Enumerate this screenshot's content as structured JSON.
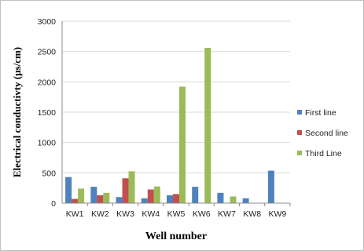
{
  "chart_data": {
    "type": "bar",
    "title": "",
    "xlabel": "Well number",
    "ylabel": "Electrical conductivty (μs/cm)",
    "categories": [
      "KW1",
      "KW2",
      "KW3",
      "KW4",
      "KW5",
      "KW6",
      "KW7",
      "KW8",
      "KW9"
    ],
    "series": [
      {
        "name": "First line",
        "color": "#4f81bd",
        "values": [
          430,
          270,
          100,
          80,
          130,
          270,
          170,
          80,
          535
        ]
      },
      {
        "name": "Second line",
        "color": "#c0504d",
        "values": [
          70,
          130,
          410,
          225,
          150,
          null,
          null,
          null,
          null
        ]
      },
      {
        "name": "Third Line",
        "color": "#9bbb59",
        "values": [
          240,
          170,
          525,
          275,
          1920,
          2560,
          110,
          null,
          null
        ]
      }
    ],
    "yticks": [
      "0",
      "500",
      "1000",
      "1500",
      "2000",
      "2500",
      "3000"
    ],
    "ylim": [
      0,
      3000
    ],
    "grid": true,
    "legend": "right"
  }
}
